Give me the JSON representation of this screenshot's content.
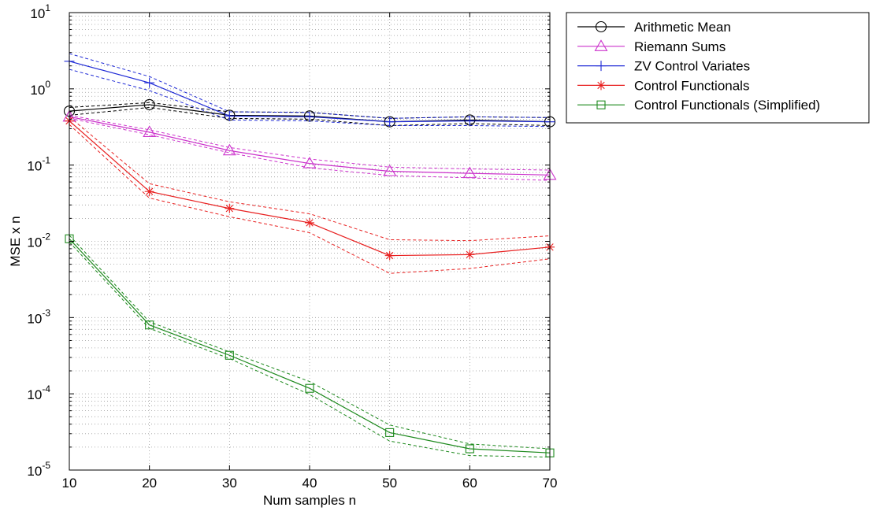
{
  "chart_data": {
    "type": "line",
    "xlabel": "Num samples n",
    "ylabel": "MSE x n",
    "x": [
      10,
      20,
      30,
      40,
      50,
      60,
      70
    ],
    "xlim": [
      10,
      70
    ],
    "ylim": [
      1e-05,
      10
    ],
    "yscale": "log",
    "grid": true,
    "legend_position": "outside-top-right",
    "x_ticks": [
      "10",
      "20",
      "30",
      "40",
      "50",
      "60",
      "70"
    ],
    "y_ticks": [
      {
        "base": "10",
        "exp": "1"
      },
      {
        "base": "10",
        "exp": "0"
      },
      {
        "base": "10",
        "exp": "-1"
      },
      {
        "base": "10",
        "exp": "-2"
      },
      {
        "base": "10",
        "exp": "-3"
      },
      {
        "base": "10",
        "exp": "-4"
      },
      {
        "base": "10",
        "exp": "-5"
      }
    ],
    "series": [
      {
        "name": "Arithmetic Mean",
        "color": "#000000",
        "marker": "circle",
        "values": [
          0.51,
          0.62,
          0.45,
          0.44,
          0.37,
          0.39,
          0.37
        ],
        "upper": [
          0.57,
          0.66,
          0.5,
          0.49,
          0.41,
          0.43,
          0.42
        ],
        "lower": [
          0.45,
          0.57,
          0.41,
          0.4,
          0.33,
          0.35,
          0.33
        ]
      },
      {
        "name": "Riemann Sums",
        "color": "#cc33cc",
        "marker": "triangle",
        "values": [
          0.43,
          0.27,
          0.155,
          0.105,
          0.083,
          0.078,
          0.074
        ],
        "upper": [
          0.45,
          0.29,
          0.17,
          0.12,
          0.094,
          0.089,
          0.086
        ],
        "lower": [
          0.41,
          0.25,
          0.145,
          0.092,
          0.073,
          0.068,
          0.063
        ]
      },
      {
        "name": "ZV Control Variates",
        "color": "#1f2ad6",
        "marker": "plus",
        "values": [
          2.3,
          1.2,
          0.44,
          0.43,
          0.37,
          0.38,
          0.37
        ],
        "upper": [
          2.9,
          1.45,
          0.5,
          0.49,
          0.41,
          0.43,
          0.42
        ],
        "lower": [
          1.8,
          0.95,
          0.39,
          0.38,
          0.33,
          0.33,
          0.32
        ]
      },
      {
        "name": "Control Functionals",
        "color": "#e82020",
        "marker": "asterisk",
        "values": [
          0.38,
          0.045,
          0.027,
          0.0175,
          0.0065,
          0.0067,
          0.0084
        ],
        "upper": [
          0.43,
          0.057,
          0.033,
          0.023,
          0.0105,
          0.0102,
          0.0118
        ],
        "lower": [
          0.34,
          0.037,
          0.021,
          0.013,
          0.0038,
          0.0044,
          0.0059
        ]
      },
      {
        "name": "Control Functionals (Simplified)",
        "color": "#1e8a1e",
        "marker": "square",
        "values": [
          0.0108,
          0.0008,
          0.00032,
          0.000118,
          3.1e-05,
          1.9e-05,
          1.68e-05
        ],
        "upper": [
          0.012,
          0.00088,
          0.000355,
          0.000145,
          3.9e-05,
          2.2e-05,
          1.9e-05
        ],
        "lower": [
          0.0098,
          0.00072,
          0.00029,
          9.8e-05,
          2.4e-05,
          1.55e-05,
          1.48e-05
        ]
      }
    ]
  }
}
